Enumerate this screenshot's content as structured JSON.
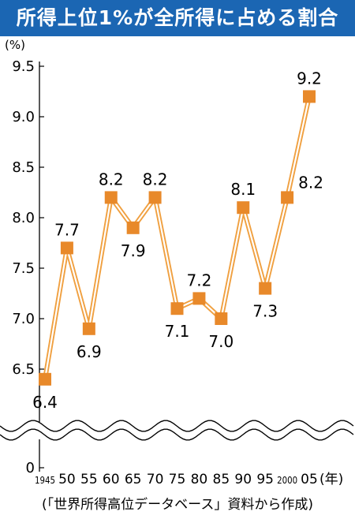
{
  "chart_data": {
    "type": "line",
    "title": "所得上位1%が全所得に占める割合",
    "ylabel": "(%)",
    "xlabel": "(年)",
    "source": "(「世界所得高位データベース」資料から作成)",
    "x": [
      "1945",
      "50",
      "55",
      "60",
      "65",
      "70",
      "75",
      "80",
      "85",
      "90",
      "95",
      "2000",
      "05"
    ],
    "values": [
      6.4,
      7.7,
      6.9,
      8.2,
      7.9,
      8.2,
      7.1,
      7.2,
      7.0,
      8.1,
      7.3,
      8.2,
      9.2
    ],
    "data_labels": [
      "6.4",
      "7.7",
      "6.9",
      "8.2",
      "7.9",
      "8.2",
      "7.1",
      "7.2",
      "7.0",
      "8.1",
      "7.3",
      "8.2",
      "9.2"
    ],
    "yticks": [
      "9.5",
      "9.0",
      "8.5",
      "8.0",
      "7.5",
      "7.0",
      "6.5",
      "0"
    ],
    "ylim": [
      6.5,
      9.5
    ],
    "axis_break": true,
    "grid": false,
    "colors": {
      "title_bg": "#1b66b3",
      "line": "#f0a040",
      "marker": "#e8892a"
    }
  }
}
